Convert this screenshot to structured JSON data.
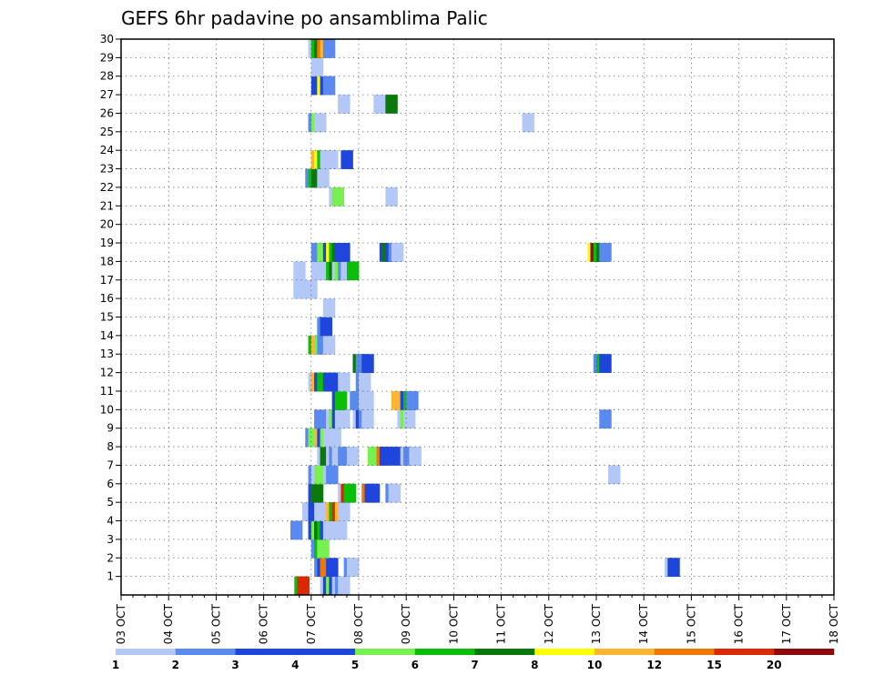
{
  "chart_data": {
    "type": "heatmap",
    "title": "GEFS 6hr padavine po ansamblima Palic",
    "x_tick_labels": [
      "03 OCT",
      "04 OCT",
      "05 OCT",
      "06 OCT",
      "07 OCT",
      "08 OCT",
      "09 OCT",
      "10 OCT",
      "11 OCT",
      "12 OCT",
      "13 OCT",
      "14 OCT",
      "15 OCT",
      "16 OCT",
      "17 OCT",
      "18 OCT"
    ],
    "x_steps_per_day": 4,
    "y_tick_labels": [
      "1",
      "2",
      "3",
      "4",
      "5",
      "6",
      "7",
      "8",
      "9",
      "10",
      "11",
      "12",
      "13",
      "14",
      "15",
      "16",
      "17",
      "18",
      "19",
      "20",
      "21",
      "22",
      "23",
      "24",
      "25",
      "26",
      "27",
      "28",
      "29",
      "30"
    ],
    "ylim": [
      0,
      30
    ],
    "grid": true,
    "colorbar": {
      "levels": [
        "1",
        "2",
        "3",
        "4",
        "5",
        "6",
        "7",
        "8",
        "10",
        "12",
        "15",
        "20"
      ],
      "colors": [
        "#b4c8f8",
        "#5a8af0",
        "#1e46dc",
        "#1e46dc",
        "#78f050",
        "#0abe0a",
        "#0a780a",
        "#ffff00",
        "#ffb432",
        "#f07800",
        "#dc2800",
        "#8c0a0a"
      ]
    },
    "cells": [
      [
        14.58,
        0,
        6
      ],
      [
        14.83,
        0,
        11
      ],
      [
        16.75,
        0,
        1
      ],
      [
        17.0,
        0,
        4
      ],
      [
        17.25,
        0,
        5
      ],
      [
        17.5,
        0,
        3
      ],
      [
        17.75,
        0,
        1
      ],
      [
        18.0,
        0,
        2
      ],
      [
        18.25,
        0,
        1
      ],
      [
        16.25,
        1,
        2
      ],
      [
        16.5,
        1,
        3
      ],
      [
        16.75,
        1,
        10
      ],
      [
        17.25,
        1,
        3
      ],
      [
        18.75,
        1,
        2
      ],
      [
        19.0,
        1,
        1
      ],
      [
        45.75,
        1,
        1
      ],
      [
        46.0,
        1,
        3
      ],
      [
        16.0,
        2,
        2
      ],
      [
        16.25,
        2,
        6
      ],
      [
        16.5,
        2,
        5
      ],
      [
        14.25,
        3,
        2
      ],
      [
        15.75,
        3,
        3
      ],
      [
        16.0,
        3,
        5
      ],
      [
        16.25,
        3,
        7
      ],
      [
        16.5,
        3,
        6
      ],
      [
        16.75,
        3,
        3
      ],
      [
        17.0,
        3,
        1
      ],
      [
        17.25,
        3,
        1
      ],
      [
        17.5,
        3,
        1
      ],
      [
        18.0,
        3,
        1
      ],
      [
        15.25,
        4,
        1
      ],
      [
        15.75,
        4,
        3
      ],
      [
        16.25,
        4,
        1
      ],
      [
        17.25,
        4,
        9
      ],
      [
        17.5,
        4,
        6
      ],
      [
        17.75,
        4,
        11
      ],
      [
        18.0,
        4,
        9
      ],
      [
        18.25,
        4,
        1
      ],
      [
        15.75,
        5,
        3
      ],
      [
        16.0,
        5,
        7
      ],
      [
        18.25,
        5,
        1
      ],
      [
        18.5,
        5,
        11
      ],
      [
        18.75,
        5,
        6
      ],
      [
        20.25,
        5,
        10
      ],
      [
        20.5,
        5,
        3
      ],
      [
        20.75,
        5,
        3
      ],
      [
        22.25,
        5,
        2
      ],
      [
        22.5,
        5,
        1
      ],
      [
        15.75,
        6,
        2
      ],
      [
        16.0,
        6,
        1
      ],
      [
        16.25,
        6,
        5
      ],
      [
        16.5,
        6,
        5
      ],
      [
        17.0,
        6,
        1
      ],
      [
        17.25,
        6,
        2
      ],
      [
        41.0,
        6,
        1
      ],
      [
        16.5,
        7,
        1
      ],
      [
        16.75,
        7,
        7
      ],
      [
        17.25,
        7,
        1
      ],
      [
        17.5,
        7,
        2
      ],
      [
        17.75,
        7,
        1
      ],
      [
        18.0,
        7,
        1
      ],
      [
        18.25,
        7,
        2
      ],
      [
        19.0,
        7,
        1
      ],
      [
        20.75,
        7,
        5
      ],
      [
        21.5,
        7,
        10
      ],
      [
        21.75,
        7,
        3
      ],
      [
        22.75,
        7,
        3
      ],
      [
        23.5,
        7,
        1
      ],
      [
        23.75,
        7,
        2
      ],
      [
        24.0,
        7,
        2
      ],
      [
        24.25,
        7,
        1
      ],
      [
        15.5,
        8,
        2
      ],
      [
        15.75,
        8,
        5
      ],
      [
        16.0,
        8,
        5
      ],
      [
        16.25,
        8,
        9
      ],
      [
        16.5,
        8,
        3
      ],
      [
        16.75,
        8,
        5
      ],
      [
        17.0,
        8,
        1
      ],
      [
        17.25,
        8,
        1
      ],
      [
        17.5,
        8,
        1
      ],
      [
        16.25,
        9,
        2
      ],
      [
        17.25,
        9,
        1
      ],
      [
        17.5,
        9,
        5
      ],
      [
        17.75,
        9,
        3
      ],
      [
        18.0,
        9,
        1
      ],
      [
        18.25,
        9,
        1
      ],
      [
        19.5,
        9,
        1
      ],
      [
        19.75,
        9,
        3
      ],
      [
        20.0,
        9,
        2
      ],
      [
        20.25,
        9,
        1
      ],
      [
        23.25,
        9,
        1
      ],
      [
        23.5,
        9,
        5
      ],
      [
        23.75,
        9,
        1
      ],
      [
        40.25,
        9,
        2
      ],
      [
        17.75,
        10,
        3
      ],
      [
        18.0,
        10,
        6
      ],
      [
        19.25,
        10,
        2
      ],
      [
        19.5,
        10,
        2
      ],
      [
        20.0,
        10,
        1
      ],
      [
        20.25,
        10,
        1
      ],
      [
        22.75,
        10,
        9
      ],
      [
        23.0,
        10,
        9
      ],
      [
        23.5,
        10,
        3
      ],
      [
        23.75,
        10,
        6
      ],
      [
        24.0,
        10,
        2
      ],
      [
        15.75,
        11,
        1
      ],
      [
        16.0,
        11,
        9
      ],
      [
        16.25,
        11,
        3
      ],
      [
        16.5,
        11,
        6
      ],
      [
        16.75,
        11,
        6
      ],
      [
        17.0,
        11,
        3
      ],
      [
        17.25,
        11,
        3
      ],
      [
        18.25,
        11,
        1
      ],
      [
        19.75,
        11,
        2
      ],
      [
        20.0,
        11,
        1
      ],
      [
        19.5,
        12,
        7
      ],
      [
        19.75,
        12,
        2
      ],
      [
        20.25,
        12,
        3
      ],
      [
        39.75,
        12,
        2
      ],
      [
        40.0,
        12,
        6
      ],
      [
        40.25,
        12,
        3
      ],
      [
        15.75,
        13,
        6
      ],
      [
        16.0,
        13,
        9
      ],
      [
        16.25,
        13,
        5
      ],
      [
        16.5,
        13,
        2
      ],
      [
        16.75,
        13,
        2
      ],
      [
        17.0,
        13,
        1
      ],
      [
        16.5,
        14,
        2
      ],
      [
        16.75,
        14,
        3
      ],
      [
        17.0,
        15,
        1
      ],
      [
        14.5,
        16,
        1
      ],
      [
        15.5,
        16,
        1
      ],
      [
        14.5,
        17,
        1
      ],
      [
        16.0,
        17,
        1
      ],
      [
        16.75,
        17,
        1
      ],
      [
        17.25,
        17,
        6
      ],
      [
        17.5,
        17,
        7
      ],
      [
        17.75,
        17,
        1
      ],
      [
        18.0,
        17,
        5
      ],
      [
        18.25,
        17,
        2
      ],
      [
        18.5,
        17,
        1
      ],
      [
        18.75,
        17,
        1
      ],
      [
        19.0,
        17,
        6
      ],
      [
        16.0,
        18,
        2
      ],
      [
        16.5,
        18,
        5
      ],
      [
        16.75,
        18,
        5
      ],
      [
        17.0,
        18,
        3
      ],
      [
        17.25,
        18,
        8
      ],
      [
        17.5,
        18,
        6
      ],
      [
        17.75,
        18,
        7
      ],
      [
        18.0,
        18,
        3
      ],
      [
        18.25,
        18,
        3
      ],
      [
        21.75,
        18,
        3
      ],
      [
        22.0,
        18,
        7
      ],
      [
        22.25,
        18,
        3
      ],
      [
        22.5,
        18,
        2
      ],
      [
        22.75,
        18,
        1
      ],
      [
        39.25,
        18,
        8
      ],
      [
        39.5,
        18,
        12
      ],
      [
        39.75,
        18,
        6
      ],
      [
        40.0,
        18,
        7
      ],
      [
        40.25,
        18,
        2
      ],
      [
        17.5,
        21,
        1
      ],
      [
        17.75,
        21,
        5
      ],
      [
        22.25,
        21,
        1
      ],
      [
        15.5,
        22,
        2
      ],
      [
        15.75,
        22,
        6
      ],
      [
        16.0,
        22,
        7
      ],
      [
        16.25,
        22,
        7
      ],
      [
        16.5,
        22,
        1
      ],
      [
        16.0,
        23,
        9
      ],
      [
        16.25,
        23,
        8
      ],
      [
        16.5,
        23,
        6
      ],
      [
        16.75,
        23,
        1
      ],
      [
        17.25,
        23,
        1
      ],
      [
        18.5,
        23,
        3
      ],
      [
        15.75,
        25,
        2
      ],
      [
        16.0,
        25,
        5
      ],
      [
        16.25,
        25,
        1
      ],
      [
        33.75,
        25,
        1
      ],
      [
        18.25,
        26,
        1
      ],
      [
        21.25,
        26,
        1
      ],
      [
        22.25,
        26,
        7
      ],
      [
        16.0,
        27,
        3
      ],
      [
        16.5,
        27,
        8
      ],
      [
        16.75,
        27,
        3
      ],
      [
        17.0,
        27,
        2
      ],
      [
        16.0,
        28,
        1
      ],
      [
        15.75,
        29,
        1
      ],
      [
        16.0,
        29,
        6
      ],
      [
        16.25,
        29,
        7
      ],
      [
        16.5,
        29,
        10
      ],
      [
        16.75,
        29,
        9
      ],
      [
        17.0,
        29,
        2
      ]
    ]
  }
}
